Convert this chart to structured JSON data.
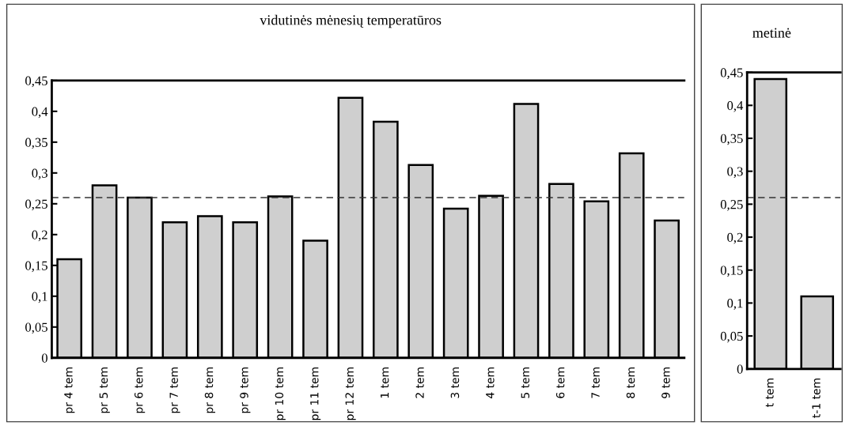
{
  "chart_data": [
    {
      "type": "bar",
      "title": "vidutinės mėnesių temperatūros",
      "categories": [
        "pr 4 tem",
        "pr 5 tem",
        "pr 6 tem",
        "pr 7 tem",
        "pr 8 tem",
        "pr 9 tem",
        "pr 10 tem",
        "pr 11 tem",
        "pr 12 tem",
        "1 tem",
        "2 tem",
        "3 tem",
        "4 tem",
        "5 tem",
        "6 tem",
        "7 tem",
        "8 tem",
        "9 tem"
      ],
      "values": [
        0.16,
        0.28,
        0.26,
        0.22,
        0.23,
        0.22,
        0.262,
        0.19,
        0.422,
        0.383,
        0.313,
        0.242,
        0.263,
        0.412,
        0.282,
        0.254,
        0.332,
        0.223
      ],
      "color": "#cfcfcf",
      "ylim": [
        0,
        0.45
      ],
      "yticks": [
        {
          "value": 0,
          "label": "0"
        },
        {
          "value": 0.05,
          "label": "0,05"
        },
        {
          "value": 0.1,
          "label": "0,1"
        },
        {
          "value": 0.15,
          "label": "0,15"
        },
        {
          "value": 0.2,
          "label": "0,2"
        },
        {
          "value": 0.25,
          "label": "0,25"
        },
        {
          "value": 0.3,
          "label": "0,3"
        },
        {
          "value": 0.35,
          "label": "0,35"
        },
        {
          "value": 0.4,
          "label": "0,4"
        },
        {
          "value": 0.45,
          "label": "0,45"
        }
      ],
      "ref_lines": [
        {
          "axis": "y",
          "value": 0.26,
          "label": null,
          "color": "#333333",
          "line_style": "dashed"
        }
      ],
      "grid": false,
      "legend": false
    },
    {
      "type": "bar",
      "title": "metinė",
      "categories": [
        "t tem",
        "t-1 tem"
      ],
      "values": [
        0.44,
        0.11
      ],
      "color": "#cfcfcf",
      "ylim": [
        0,
        0.45
      ],
      "yticks": [
        {
          "value": 0,
          "label": "0"
        },
        {
          "value": 0.05,
          "label": "0,05"
        },
        {
          "value": 0.1,
          "label": "0,1"
        },
        {
          "value": 0.15,
          "label": "0,15"
        },
        {
          "value": 0.2,
          "label": "0,2"
        },
        {
          "value": 0.25,
          "label": "0,25"
        },
        {
          "value": 0.3,
          "label": "0,3"
        },
        {
          "value": 0.35,
          "label": "0,35"
        },
        {
          "value": 0.4,
          "label": "0,4"
        },
        {
          "value": 0.45,
          "label": "0,45"
        }
      ],
      "ref_lines": [
        {
          "axis": "y",
          "value": 0.26,
          "label": null,
          "color": "#333333",
          "line_style": "dashed"
        }
      ],
      "grid": false,
      "legend": false
    }
  ]
}
